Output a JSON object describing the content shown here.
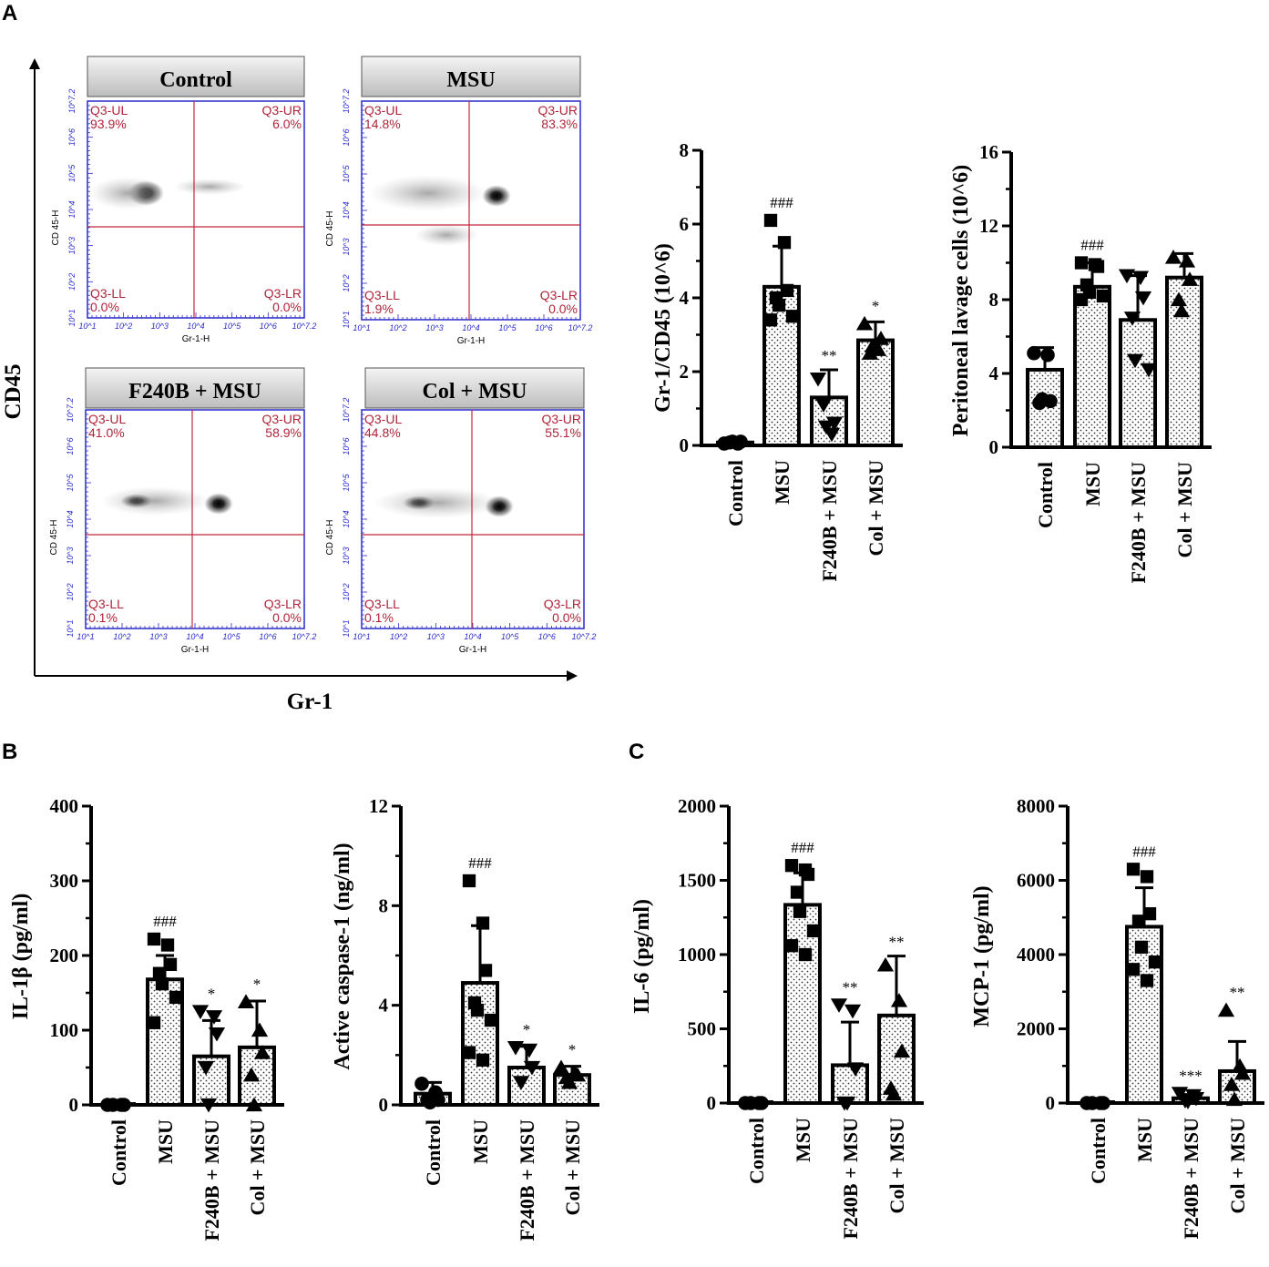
{
  "panels": {
    "a": "A",
    "b": "B",
    "c": "C"
  },
  "flow": {
    "y_axis_title": "CD45",
    "x_axis_title": "Gr-1",
    "plot_y_label": "CD 45-H",
    "plot_x_label": "Gr-1-H",
    "y_ticks": [
      "10^1",
      "10^2",
      "10^3",
      "10^4",
      "10^5",
      "10^6",
      "10^7.2"
    ],
    "x_ticks": [
      "10^1",
      "10^2",
      "10^3",
      "10^4",
      "10^5",
      "10^6",
      "10^7.2"
    ],
    "quad_names": {
      "ul": "Q3-UL",
      "ur": "Q3-UR",
      "ll": "Q3-LL",
      "lr": "Q3-LR"
    },
    "plots": [
      {
        "title": "Control",
        "ul": "93.9%",
        "ur": "6.0%",
        "ll": "0.0%",
        "lr": "0.0%"
      },
      {
        "title": "MSU",
        "ul": "14.8%",
        "ur": "83.3%",
        "ll": "1.9%",
        "lr": "0.0%"
      },
      {
        "title": "F240B + MSU",
        "ul": "41.0%",
        "ur": "58.9%",
        "ll": "0.1%",
        "lr": "0.0%"
      },
      {
        "title": "Col + MSU",
        "ul": "44.8%",
        "ur": "55.1%",
        "ll": "0.1%",
        "lr": "0.0%"
      }
    ]
  },
  "chart_data": [
    {
      "type": "bar",
      "panel": "A",
      "ylabel": "Gr-1/CD45 (10^6)",
      "ylim": [
        0,
        8
      ],
      "yticks": [
        "0",
        "2",
        "4",
        "6",
        "8"
      ],
      "categories": [
        "Control",
        "MSU",
        "F240B + MSU",
        "Col + MSU"
      ],
      "values": [
        0.08,
        4.3,
        1.3,
        2.85
      ],
      "errors": [
        0.05,
        1.1,
        0.75,
        0.5
      ],
      "points": [
        [
          0.05,
          0.05,
          0.1,
          0.08,
          0.1
        ],
        [
          6.1,
          5.5,
          4.2,
          4.0,
          3.8,
          3.5,
          3.4
        ],
        [
          1.8,
          0.3,
          0.6,
          1.1,
          0.5
        ],
        [
          3.3,
          2.6,
          2.9,
          2.5,
          2.7
        ]
      ],
      "annotations": [
        "",
        "###",
        "**",
        "*"
      ]
    },
    {
      "type": "bar",
      "panel": "A",
      "ylabel": "Peritoneal lavage cells (10^6)",
      "ylim": [
        0,
        16
      ],
      "yticks": [
        "0",
        "4",
        "8",
        "12",
        "16"
      ],
      "categories": [
        "Control",
        "MSU",
        "F240B + MSU",
        "Col + MSU"
      ],
      "values": [
        4.2,
        8.7,
        6.9,
        9.2
      ],
      "errors": [
        1.2,
        1.3,
        2.4,
        1.3
      ],
      "points": [
        [
          5.1,
          5.0,
          2.5,
          2.4,
          2.6
        ],
        [
          10.0,
          9.9,
          9.8,
          8.8,
          8.4,
          8.2,
          8.0
        ],
        [
          9.3,
          9.2,
          8.1,
          7.0,
          4.7,
          4.2
        ],
        [
          10.3,
          10.1,
          9.1,
          8.0,
          7.4
        ]
      ],
      "annotations": [
        "",
        "###",
        "",
        ""
      ]
    },
    {
      "type": "bar",
      "panel": "B",
      "ylabel": "IL-1β (pg/ml)",
      "ylim": [
        0,
        400
      ],
      "yticks": [
        "0",
        "100",
        "200",
        "300",
        "400"
      ],
      "categories": [
        "Control",
        "MSU",
        "F240B + MSU",
        "Col + MSU"
      ],
      "values": [
        0,
        168,
        65,
        77
      ],
      "errors": [
        0,
        32,
        48,
        62
      ],
      "points": [
        [
          0,
          0,
          0,
          0
        ],
        [
          222,
          214,
          188,
          176,
          162,
          144,
          110
        ],
        [
          125,
          118,
          95,
          50,
          0
        ],
        [
          138,
          100,
          70,
          40,
          0
        ]
      ],
      "annotations": [
        "",
        "###",
        "*",
        "*"
      ]
    },
    {
      "type": "bar",
      "panel": "B",
      "ylabel": "Active caspase-1 (ng/ml)",
      "ylim": [
        0,
        12
      ],
      "yticks": [
        "0",
        "4",
        "8",
        "12"
      ],
      "categories": [
        "Control",
        "MSU",
        "F240B + MSU",
        "Col + MSU"
      ],
      "values": [
        0.45,
        4.9,
        1.5,
        1.2
      ],
      "errors": [
        0.45,
        2.3,
        0.85,
        0.35
      ],
      "points": [
        [
          0.85,
          0.5,
          0.2,
          0.2,
          0.1
        ],
        [
          9.0,
          7.3,
          5.4,
          4.1,
          3.8,
          3.4,
          2.1,
          1.8
        ],
        [
          2.3,
          2.2,
          1.5,
          0.9
        ],
        [
          1.5,
          1.3,
          1.2,
          1.1,
          0.9
        ]
      ],
      "annotations": [
        "",
        "###",
        "*",
        "*"
      ]
    },
    {
      "type": "bar",
      "panel": "C",
      "ylabel": "IL-6 (pg/ml)",
      "ylim": [
        0,
        2000
      ],
      "yticks": [
        "0",
        "500",
        "1000",
        "1500",
        "2000"
      ],
      "categories": [
        "Control",
        "MSU",
        "F240B + MSU",
        "Col + MSU"
      ],
      "values": [
        0,
        1335,
        255,
        590
      ],
      "errors": [
        0,
        215,
        290,
        400
      ],
      "points": [
        [
          0,
          0,
          0,
          0
        ],
        [
          1600,
          1570,
          1540,
          1420,
          1290,
          1160,
          1060,
          1000
        ],
        [
          660,
          620,
          230,
          0,
          0
        ],
        [
          930,
          690,
          350,
          100,
          60
        ]
      ],
      "annotations": [
        "",
        "###",
        "**",
        "**"
      ]
    },
    {
      "type": "bar",
      "panel": "C",
      "ylabel": "MCP-1 (pg/ml)",
      "ylim": [
        0,
        8000
      ],
      "yticks": [
        "0",
        "2000",
        "4000",
        "6000",
        "8000"
      ],
      "categories": [
        "Control",
        "MSU",
        "F240B + MSU",
        "Col + MSU"
      ],
      "values": [
        0,
        4750,
        130,
        860
      ],
      "errors": [
        0,
        1050,
        100,
        800
      ],
      "points": [
        [
          0,
          0,
          0,
          0
        ],
        [
          6300,
          6100,
          5100,
          4900,
          4200,
          3800,
          3600,
          3300
        ],
        [
          260,
          200,
          120,
          60,
          40
        ],
        [
          2500,
          1000,
          800,
          500,
          100
        ]
      ],
      "annotations": [
        "",
        "###",
        "***",
        "**"
      ]
    }
  ]
}
